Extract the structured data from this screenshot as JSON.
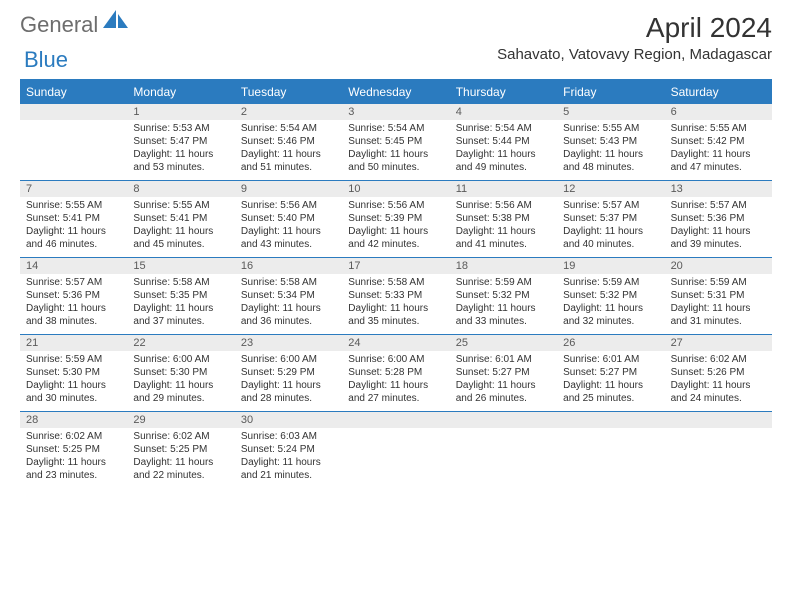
{
  "logo": {
    "general": "General",
    "blue": "Blue"
  },
  "title": "April 2024",
  "location": "Sahavato, Vatovavy Region, Madagascar",
  "colors": {
    "accent": "#2b7bbf",
    "header_text": "#ffffff",
    "daynum_bg": "#ececec",
    "daynum_text": "#5a5a5a",
    "body_text": "#333333",
    "logo_gray": "#6d6d6d"
  },
  "weekdays": [
    "Sunday",
    "Monday",
    "Tuesday",
    "Wednesday",
    "Thursday",
    "Friday",
    "Saturday"
  ],
  "weeks": [
    [
      {
        "n": "",
        "body": []
      },
      {
        "n": "1",
        "body": [
          "Sunrise: 5:53 AM",
          "Sunset: 5:47 PM",
          "Daylight: 11 hours",
          "and 53 minutes."
        ]
      },
      {
        "n": "2",
        "body": [
          "Sunrise: 5:54 AM",
          "Sunset: 5:46 PM",
          "Daylight: 11 hours",
          "and 51 minutes."
        ]
      },
      {
        "n": "3",
        "body": [
          "Sunrise: 5:54 AM",
          "Sunset: 5:45 PM",
          "Daylight: 11 hours",
          "and 50 minutes."
        ]
      },
      {
        "n": "4",
        "body": [
          "Sunrise: 5:54 AM",
          "Sunset: 5:44 PM",
          "Daylight: 11 hours",
          "and 49 minutes."
        ]
      },
      {
        "n": "5",
        "body": [
          "Sunrise: 5:55 AM",
          "Sunset: 5:43 PM",
          "Daylight: 11 hours",
          "and 48 minutes."
        ]
      },
      {
        "n": "6",
        "body": [
          "Sunrise: 5:55 AM",
          "Sunset: 5:42 PM",
          "Daylight: 11 hours",
          "and 47 minutes."
        ]
      }
    ],
    [
      {
        "n": "7",
        "body": [
          "Sunrise: 5:55 AM",
          "Sunset: 5:41 PM",
          "Daylight: 11 hours",
          "and 46 minutes."
        ]
      },
      {
        "n": "8",
        "body": [
          "Sunrise: 5:55 AM",
          "Sunset: 5:41 PM",
          "Daylight: 11 hours",
          "and 45 minutes."
        ]
      },
      {
        "n": "9",
        "body": [
          "Sunrise: 5:56 AM",
          "Sunset: 5:40 PM",
          "Daylight: 11 hours",
          "and 43 minutes."
        ]
      },
      {
        "n": "10",
        "body": [
          "Sunrise: 5:56 AM",
          "Sunset: 5:39 PM",
          "Daylight: 11 hours",
          "and 42 minutes."
        ]
      },
      {
        "n": "11",
        "body": [
          "Sunrise: 5:56 AM",
          "Sunset: 5:38 PM",
          "Daylight: 11 hours",
          "and 41 minutes."
        ]
      },
      {
        "n": "12",
        "body": [
          "Sunrise: 5:57 AM",
          "Sunset: 5:37 PM",
          "Daylight: 11 hours",
          "and 40 minutes."
        ]
      },
      {
        "n": "13",
        "body": [
          "Sunrise: 5:57 AM",
          "Sunset: 5:36 PM",
          "Daylight: 11 hours",
          "and 39 minutes."
        ]
      }
    ],
    [
      {
        "n": "14",
        "body": [
          "Sunrise: 5:57 AM",
          "Sunset: 5:36 PM",
          "Daylight: 11 hours",
          "and 38 minutes."
        ]
      },
      {
        "n": "15",
        "body": [
          "Sunrise: 5:58 AM",
          "Sunset: 5:35 PM",
          "Daylight: 11 hours",
          "and 37 minutes."
        ]
      },
      {
        "n": "16",
        "body": [
          "Sunrise: 5:58 AM",
          "Sunset: 5:34 PM",
          "Daylight: 11 hours",
          "and 36 minutes."
        ]
      },
      {
        "n": "17",
        "body": [
          "Sunrise: 5:58 AM",
          "Sunset: 5:33 PM",
          "Daylight: 11 hours",
          "and 35 minutes."
        ]
      },
      {
        "n": "18",
        "body": [
          "Sunrise: 5:59 AM",
          "Sunset: 5:32 PM",
          "Daylight: 11 hours",
          "and 33 minutes."
        ]
      },
      {
        "n": "19",
        "body": [
          "Sunrise: 5:59 AM",
          "Sunset: 5:32 PM",
          "Daylight: 11 hours",
          "and 32 minutes."
        ]
      },
      {
        "n": "20",
        "body": [
          "Sunrise: 5:59 AM",
          "Sunset: 5:31 PM",
          "Daylight: 11 hours",
          "and 31 minutes."
        ]
      }
    ],
    [
      {
        "n": "21",
        "body": [
          "Sunrise: 5:59 AM",
          "Sunset: 5:30 PM",
          "Daylight: 11 hours",
          "and 30 minutes."
        ]
      },
      {
        "n": "22",
        "body": [
          "Sunrise: 6:00 AM",
          "Sunset: 5:30 PM",
          "Daylight: 11 hours",
          "and 29 minutes."
        ]
      },
      {
        "n": "23",
        "body": [
          "Sunrise: 6:00 AM",
          "Sunset: 5:29 PM",
          "Daylight: 11 hours",
          "and 28 minutes."
        ]
      },
      {
        "n": "24",
        "body": [
          "Sunrise: 6:00 AM",
          "Sunset: 5:28 PM",
          "Daylight: 11 hours",
          "and 27 minutes."
        ]
      },
      {
        "n": "25",
        "body": [
          "Sunrise: 6:01 AM",
          "Sunset: 5:27 PM",
          "Daylight: 11 hours",
          "and 26 minutes."
        ]
      },
      {
        "n": "26",
        "body": [
          "Sunrise: 6:01 AM",
          "Sunset: 5:27 PM",
          "Daylight: 11 hours",
          "and 25 minutes."
        ]
      },
      {
        "n": "27",
        "body": [
          "Sunrise: 6:02 AM",
          "Sunset: 5:26 PM",
          "Daylight: 11 hours",
          "and 24 minutes."
        ]
      }
    ],
    [
      {
        "n": "28",
        "body": [
          "Sunrise: 6:02 AM",
          "Sunset: 5:25 PM",
          "Daylight: 11 hours",
          "and 23 minutes."
        ]
      },
      {
        "n": "29",
        "body": [
          "Sunrise: 6:02 AM",
          "Sunset: 5:25 PM",
          "Daylight: 11 hours",
          "and 22 minutes."
        ]
      },
      {
        "n": "30",
        "body": [
          "Sunrise: 6:03 AM",
          "Sunset: 5:24 PM",
          "Daylight: 11 hours",
          "and 21 minutes."
        ]
      },
      {
        "n": "",
        "body": []
      },
      {
        "n": "",
        "body": []
      },
      {
        "n": "",
        "body": []
      },
      {
        "n": "",
        "body": []
      }
    ]
  ]
}
